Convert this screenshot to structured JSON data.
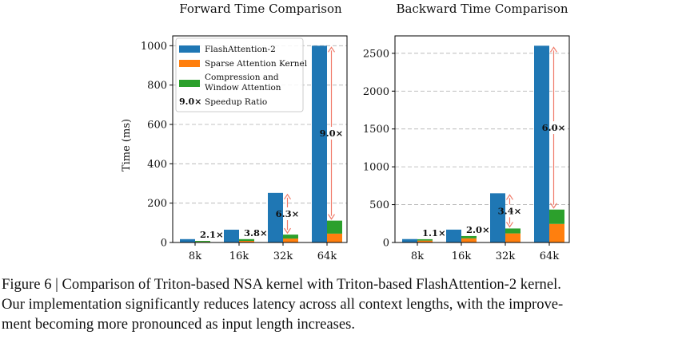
{
  "colors": {
    "flash": "#1f77b4",
    "sparse": "#ff7f0e",
    "window": "#2ca02c",
    "speedup": "#f07b6a",
    "grid": "#b0b0b0"
  },
  "chart_data": [
    {
      "type": "bar",
      "title": "Forward Time Comparison",
      "ylabel": "Time (ms)",
      "xlabel": "",
      "categories": [
        "8k",
        "16k",
        "32k",
        "64k"
      ],
      "ylim": [
        0,
        1050
      ],
      "yticks": [
        0,
        200,
        400,
        600,
        800,
        1000
      ],
      "grid": true,
      "series": [
        {
          "name": "FlashAttention-2",
          "values": [
            17,
            65,
            252,
            1000
          ]
        },
        {
          "name": "Sparse Attention Kernel",
          "values": [
            3,
            8,
            20,
            45
          ]
        },
        {
          "name": "Compression and Window Attention",
          "values": [
            5,
            9,
            20,
            66
          ]
        }
      ],
      "speedup": [
        "2.1×",
        "3.8×",
        "6.3×",
        "9.0×"
      ],
      "legend": {
        "placement": "top-left",
        "entries": [
          "FlashAttention-2",
          "Sparse Attention Kernel",
          "Compression and",
          "Window Attention",
          "Speedup Ratio"
        ],
        "speedup_example": "9.0×"
      }
    },
    {
      "type": "bar",
      "title": "Backward Time Comparison",
      "ylabel": "",
      "xlabel": "",
      "categories": [
        "8k",
        "16k",
        "32k",
        "64k"
      ],
      "ylim": [
        0,
        2730
      ],
      "yticks": [
        0,
        500,
        1000,
        1500,
        2000,
        2500
      ],
      "grid": true,
      "series": [
        {
          "name": "FlashAttention-2",
          "values": [
            45,
            170,
            650,
            2600
          ]
        },
        {
          "name": "Sparse Attention Kernel",
          "values": [
            25,
            55,
            120,
            245
          ]
        },
        {
          "name": "Compression and Window Attention",
          "values": [
            18,
            30,
            65,
            190
          ]
        }
      ],
      "speedup": [
        "1.1×",
        "2.0×",
        "3.4×",
        "6.0×"
      ]
    }
  ],
  "caption": {
    "line1": "Figure 6 | Comparison of Triton-based NSA kernel with Triton-based FlashAttention-2 kernel.",
    "line2": "Our implementation significantly reduces latency across all context lengths, with the improve-",
    "line3": "ment becoming more pronounced as input length increases."
  }
}
